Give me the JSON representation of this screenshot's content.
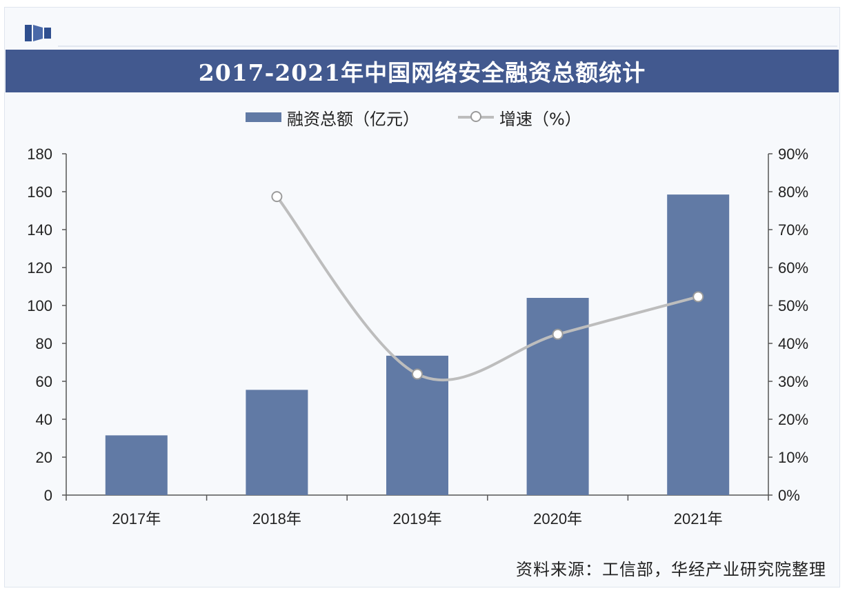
{
  "header": {
    "title": "2017-2021年中国网络安全融资总额统计"
  },
  "legend": {
    "bar_label": "融资总额（亿元）",
    "line_label": "增速（%）"
  },
  "source_text": "资料来源：工信部，华经产业研究院整理",
  "colors": {
    "title_bg": "#42598f",
    "bar": "#617aa5",
    "line": "#bdbdbd",
    "marker_stroke": "#9b9b9b"
  },
  "chart_data": {
    "type": "bar",
    "categories": [
      "2017年",
      "2018年",
      "2019年",
      "2020年",
      "2021年"
    ],
    "series": [
      {
        "name": "融资总额（亿元）",
        "axis": "left",
        "type": "bar",
        "values": [
          31.5,
          55.5,
          73.5,
          104,
          158.5
        ]
      },
      {
        "name": "增速（%）",
        "axis": "right",
        "type": "line",
        "values": [
          null,
          78.7,
          31.9,
          42.4,
          52.3
        ]
      }
    ],
    "y_left": {
      "min": 0,
      "max": 180,
      "tick_step": 20,
      "tick_labels": [
        "0",
        "20",
        "40",
        "60",
        "80",
        "100",
        "120",
        "140",
        "160",
        "180"
      ]
    },
    "y_right": {
      "min": 0,
      "max": 90,
      "tick_step": 10,
      "tick_labels": [
        "0%",
        "10%",
        "20%",
        "30%",
        "40%",
        "50%",
        "60%",
        "70%",
        "80%",
        "90%"
      ]
    },
    "grid": false,
    "legend_position": "top"
  }
}
